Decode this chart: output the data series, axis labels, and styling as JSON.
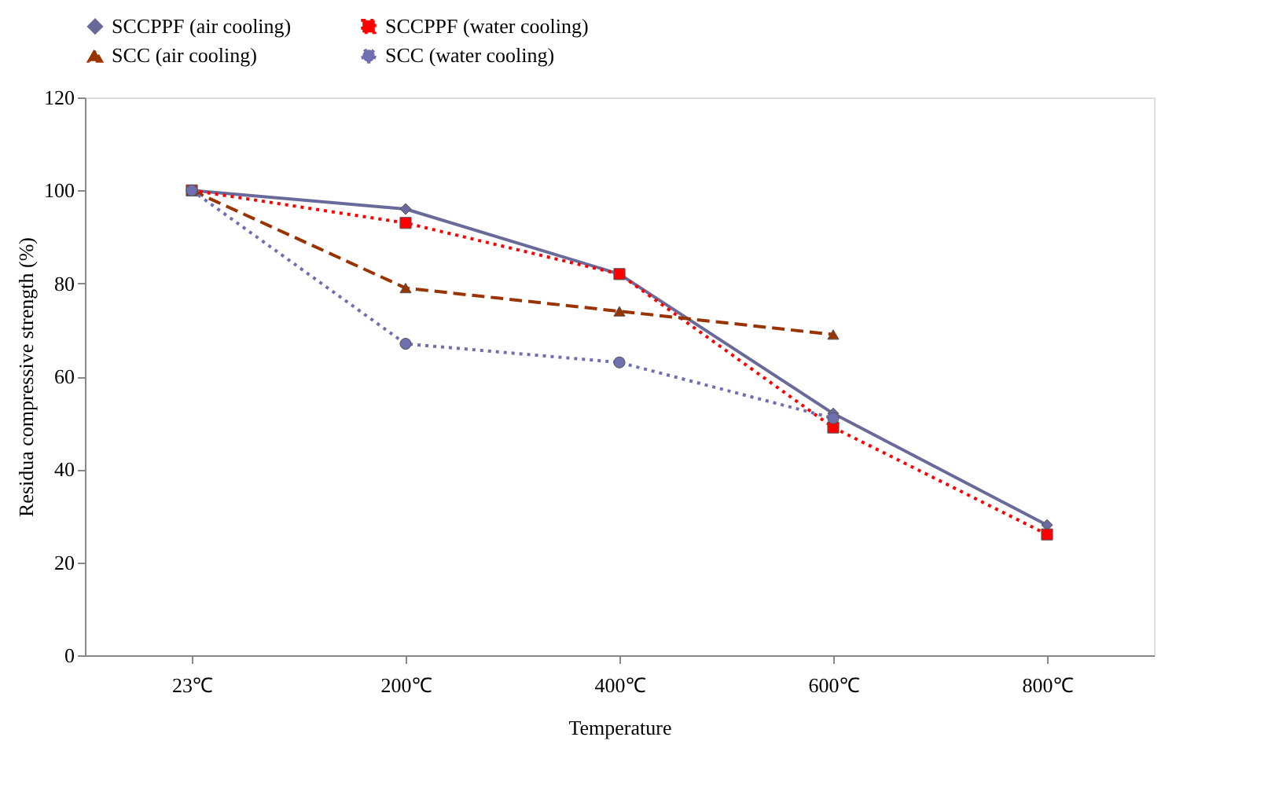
{
  "chart_data": {
    "type": "line",
    "xlabel": "Temperature",
    "ylabel": "Residua compressive strength (%)",
    "categories": [
      "23℃",
      "200℃",
      "400℃",
      "600℃",
      "800℃"
    ],
    "ylim": [
      0,
      120
    ],
    "yticks": [
      0,
      20,
      40,
      60,
      80,
      100,
      120
    ],
    "grid": false,
    "legend": "top",
    "series": [
      {
        "name": "SCCPPF (air cooling)",
        "color": "#6a6a9a",
        "marker": "diamond",
        "line_style": "solid",
        "values": [
          100,
          96,
          82,
          52,
          28
        ]
      },
      {
        "name": "SCCPPF (water cooling)",
        "color": "#ff0000",
        "marker": "square",
        "line_style": "dotted",
        "values": [
          100,
          93,
          82,
          49,
          26
        ]
      },
      {
        "name": "SCC (air cooling)",
        "color": "#993300",
        "marker": "triangle",
        "line_style": "dashed",
        "values": [
          100,
          79,
          74,
          69,
          null
        ]
      },
      {
        "name": "SCC (water cooling)",
        "color": "#6f6fb0",
        "marker": "circle",
        "line_style": "dotted",
        "values": [
          100,
          67,
          63,
          51,
          null
        ]
      }
    ]
  }
}
